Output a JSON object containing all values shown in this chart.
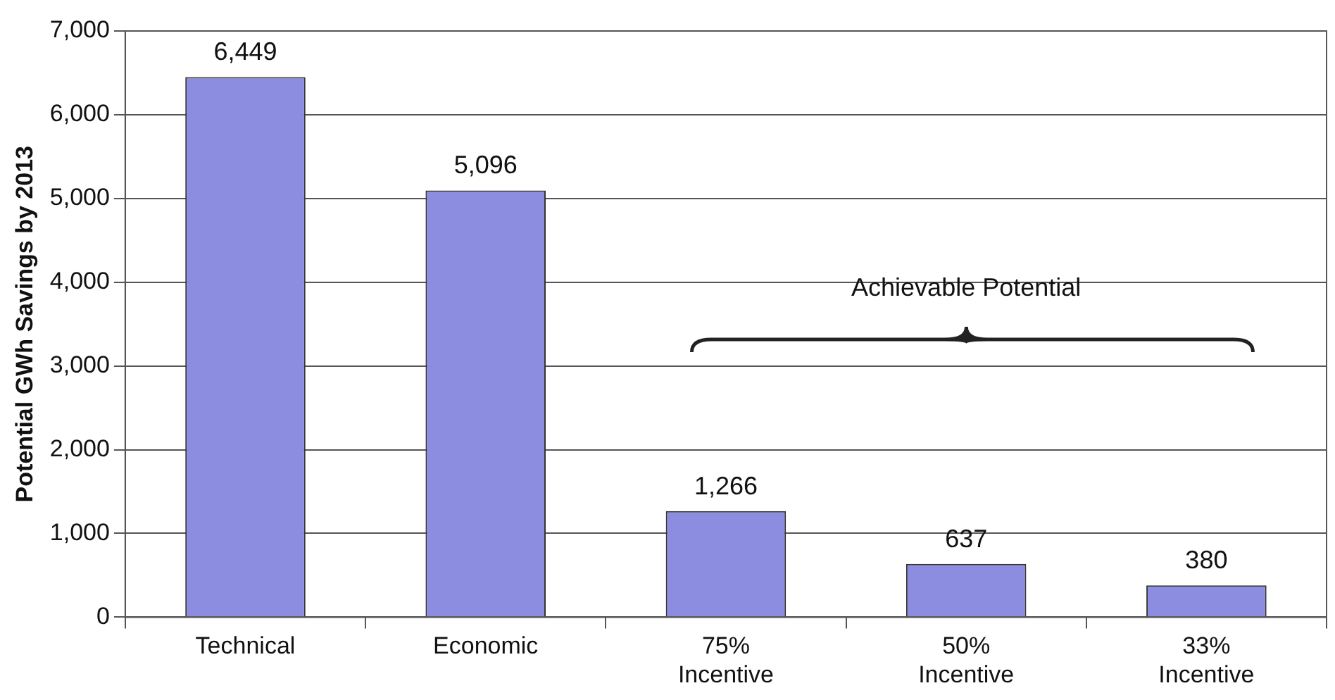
{
  "chart_data": {
    "type": "bar",
    "ylabel": "Potential GWh Savings by 2013",
    "categories": [
      "Technical",
      "Economic",
      "75% Incentive",
      "50% Incentive",
      "33% Incentive"
    ],
    "values": [
      6449,
      5096,
      1266,
      637,
      380
    ],
    "color": "#8c8ce0",
    "ylim": [
      0,
      7000
    ],
    "yticks": [
      0,
      {
        "value": 1000,
        "label": "1,000"
      },
      {
        "value": 2000,
        "label": "2,000"
      },
      {
        "value": 3000,
        "label": "3,000"
      },
      {
        "value": 4000,
        "label": "4,000"
      },
      {
        "value": 5000,
        "label": "5,000"
      },
      {
        "value": 6000,
        "label": "6,000"
      },
      {
        "value": 7000,
        "label": "7,000"
      }
    ],
    "grid": "y",
    "legend": false,
    "data_labels": true,
    "value_labels": [
      "6,449",
      "5,096",
      "1,266",
      "637",
      "380"
    ],
    "annotations": [
      "Achievable Potential"
    ]
  }
}
